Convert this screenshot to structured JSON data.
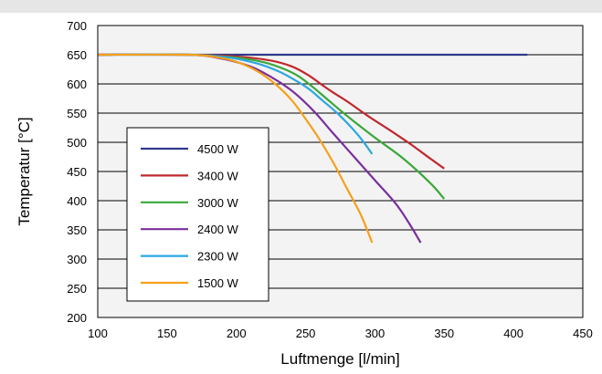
{
  "chart_data": {
    "type": "line",
    "xlabel": "Luftmenge [l/min]",
    "ylabel": "Temperatur [°C]",
    "xlim": [
      100,
      450
    ],
    "ylim": [
      200,
      700
    ],
    "x_ticks": [
      "100",
      "150",
      "200",
      "250",
      "300",
      "350",
      "400",
      "450"
    ],
    "y_ticks": [
      "200",
      "250",
      "300",
      "350",
      "400",
      "450",
      "500",
      "550",
      "600",
      "650",
      "700"
    ],
    "grid": "horizontal",
    "legend_position": "left",
    "plot_background": "#f3f3f3",
    "series": [
      {
        "name": "4500 W",
        "color": "#2e3a8c",
        "points": [
          [
            100,
            650
          ],
          [
            410,
            650
          ]
        ]
      },
      {
        "name": "3400 W",
        "color": "#c0282d",
        "points": [
          [
            100,
            650
          ],
          [
            165,
            650
          ],
          [
            200,
            647
          ],
          [
            225,
            640
          ],
          [
            240,
            630
          ],
          [
            252,
            615
          ],
          [
            262,
            598
          ],
          [
            270,
            585
          ],
          [
            280,
            570
          ],
          [
            295,
            545
          ],
          [
            310,
            522
          ],
          [
            325,
            498
          ],
          [
            340,
            472
          ],
          [
            350,
            455
          ]
        ]
      },
      {
        "name": "3000 W",
        "color": "#3aa83a",
        "points": [
          [
            100,
            650
          ],
          [
            165,
            650
          ],
          [
            200,
            645
          ],
          [
            220,
            637
          ],
          [
            235,
            625
          ],
          [
            245,
            613
          ],
          [
            255,
            595
          ],
          [
            265,
            575
          ],
          [
            280,
            545
          ],
          [
            300,
            508
          ],
          [
            320,
            473
          ],
          [
            340,
            430
          ],
          [
            350,
            403
          ]
        ]
      },
      {
        "name": "2400 W",
        "color": "#7a2f9c",
        "points": [
          [
            100,
            650
          ],
          [
            165,
            650
          ],
          [
            190,
            643
          ],
          [
            210,
            630
          ],
          [
            225,
            612
          ],
          [
            238,
            592
          ],
          [
            248,
            572
          ],
          [
            258,
            548
          ],
          [
            270,
            515
          ],
          [
            285,
            475
          ],
          [
            300,
            435
          ],
          [
            315,
            395
          ],
          [
            325,
            360
          ],
          [
            333,
            328
          ]
        ]
      },
      {
        "name": "2300 W",
        "color": "#2aa7e0",
        "points": [
          [
            100,
            650
          ],
          [
            165,
            650
          ],
          [
            195,
            645
          ],
          [
            215,
            635
          ],
          [
            230,
            622
          ],
          [
            242,
            607
          ],
          [
            252,
            592
          ],
          [
            262,
            572
          ],
          [
            275,
            545
          ],
          [
            288,
            512
          ],
          [
            298,
            480
          ]
        ]
      },
      {
        "name": "1500 W",
        "color": "#f5a01a",
        "points": [
          [
            100,
            650
          ],
          [
            165,
            650
          ],
          [
            185,
            646
          ],
          [
            200,
            638
          ],
          [
            215,
            622
          ],
          [
            228,
            600
          ],
          [
            240,
            572
          ],
          [
            250,
            540
          ],
          [
            260,
            505
          ],
          [
            270,
            465
          ],
          [
            280,
            420
          ],
          [
            290,
            375
          ],
          [
            298,
            328
          ]
        ]
      }
    ]
  }
}
